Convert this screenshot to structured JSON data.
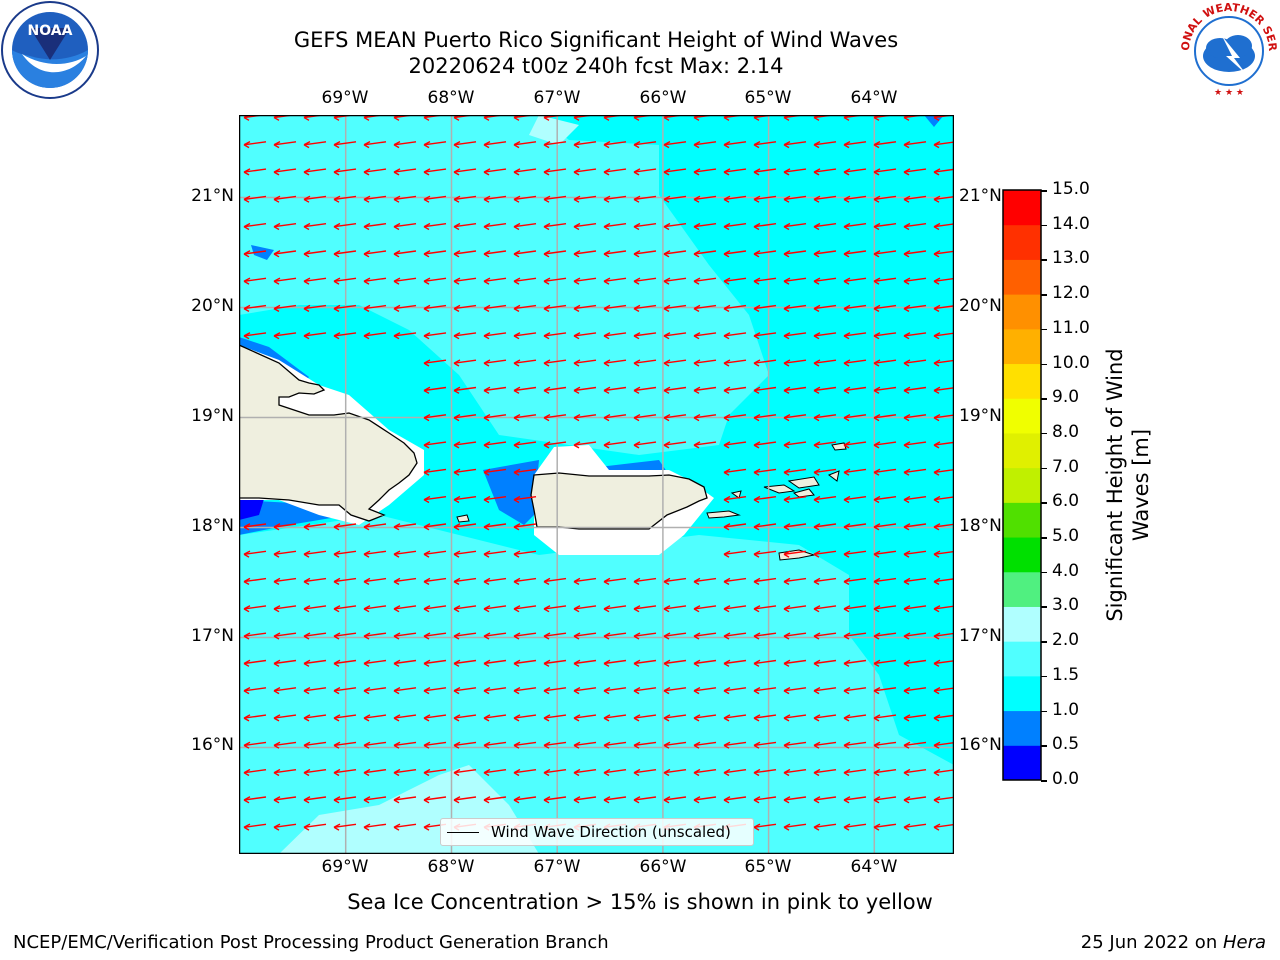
{
  "title": {
    "line1": "GEFS MEAN Puerto Rico Significant Height of Wind Waves",
    "line2": "20220624 t00z 240h fcst   Max: 2.14"
  },
  "logos": {
    "left": {
      "name": "noaa-logo",
      "text": "NOAA",
      "ring_text": "NATIONAL OCEANIC AND ATMOSPHERIC ADMINISTRATION · U.S. DEPARTMENT OF COMMERCE"
    },
    "right": {
      "name": "nws-logo",
      "ring_text": "NATIONAL WEATHER SERVICE"
    }
  },
  "map": {
    "region": "Puerto Rico",
    "lon_range": [
      -69.9,
      -63.2
    ],
    "lat_range": [
      15.05,
      21.75
    ],
    "lon_ticks": [
      "69°W",
      "68°W",
      "67°W",
      "66°W",
      "65°W",
      "64°W"
    ],
    "lat_ticks": [
      "21°N",
      "20°N",
      "19°N",
      "18°N",
      "17°N",
      "16°N"
    ],
    "grid": true,
    "vector_color": "#ff0000",
    "vector_field": "Wind Wave Direction (unscaled)",
    "vector_direction": "toward west-southwest",
    "land_color": "#efefdf",
    "legend": {
      "label": "Wind Wave Direction (unscaled)",
      "placement": "bottom-center"
    }
  },
  "colorbar": {
    "label": "Significant Height of Wind\nWaves [m]",
    "ticks": [
      "15.0",
      "14.0",
      "13.0",
      "12.0",
      "11.0",
      "10.0",
      "9.0",
      "8.0",
      "7.0",
      "6.0",
      "5.0",
      "4.0",
      "3.0",
      "2.0",
      "1.5",
      "1.0",
      "0.5",
      "0.0"
    ],
    "levels": [
      {
        "range": "0.0-0.5",
        "color": "#0000ff"
      },
      {
        "range": "0.5-1.0",
        "color": "#0080ff"
      },
      {
        "range": "1.0-1.5",
        "color": "#00ffff"
      },
      {
        "range": "1.5-2.0",
        "color": "#50ffff"
      },
      {
        "range": "2.0-3.0",
        "color": "#b0ffff"
      },
      {
        "range": "3.0-4.0",
        "color": "#50f080"
      },
      {
        "range": "4.0-5.0",
        "color": "#00e000"
      },
      {
        "range": "5.0-6.0",
        "color": "#50e000"
      },
      {
        "range": "6.0-7.0",
        "color": "#c0f000"
      },
      {
        "range": "7.0-8.0",
        "color": "#e0f000"
      },
      {
        "range": "8.0-9.0",
        "color": "#f0ff00"
      },
      {
        "range": "9.0-10.0",
        "color": "#ffe000"
      },
      {
        "range": "10.0-11.0",
        "color": "#ffb000"
      },
      {
        "range": "11.0-12.0",
        "color": "#ff9000"
      },
      {
        "range": "12.0-13.0",
        "color": "#ff6000"
      },
      {
        "range": "13.0-14.0",
        "color": "#ff3000"
      },
      {
        "range": "14.0-15.0",
        "color": "#ff0000"
      }
    ]
  },
  "notes": {
    "sea_ice": "Sea Ice Concentration > 15% is shown in pink to yellow"
  },
  "footer": {
    "left": "NCEP/EMC/Verification Post Processing Product Generation Branch",
    "date": "25 Jun 2022 on ",
    "host": "Hera"
  }
}
